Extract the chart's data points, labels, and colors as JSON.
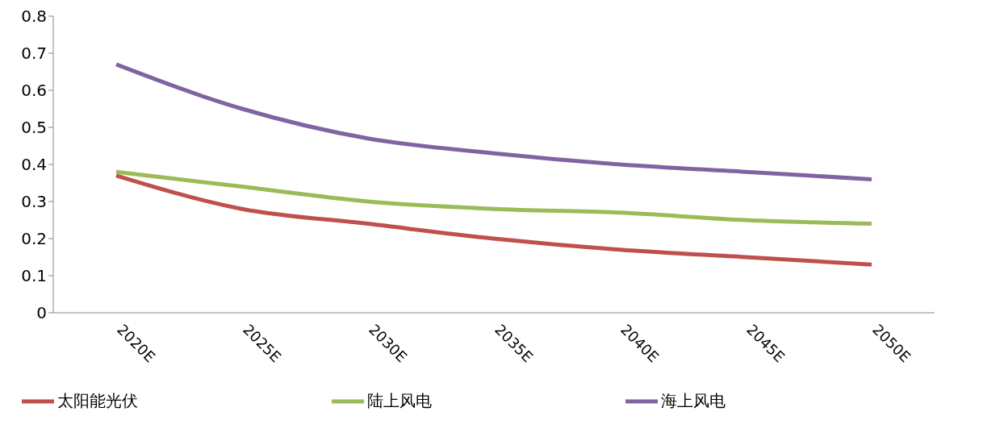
{
  "chart_data": {
    "type": "line",
    "categories": [
      "2020E",
      "2025E",
      "2030E",
      "2035E",
      "2040E",
      "2045E",
      "2050E"
    ],
    "series": [
      {
        "name": "太阳能光伏",
        "color": "#c0504d",
        "values": [
          0.37,
          0.28,
          0.24,
          0.2,
          0.17,
          0.15,
          0.13
        ]
      },
      {
        "name": "陆上风电",
        "color": "#9bbb59",
        "values": [
          0.38,
          0.34,
          0.3,
          0.28,
          0.27,
          0.25,
          0.24
        ]
      },
      {
        "name": "海上风电",
        "color": "#8064a2",
        "values": [
          0.67,
          0.55,
          0.47,
          0.43,
          0.4,
          0.38,
          0.36
        ]
      }
    ],
    "ylim": [
      0,
      0.8
    ],
    "yticks": [
      0,
      0.1,
      0.2,
      0.3,
      0.4,
      0.5,
      0.6,
      0.7,
      0.8
    ],
    "grid": false,
    "legend": "bottom",
    "marker": "none",
    "line_style": "solid"
  }
}
